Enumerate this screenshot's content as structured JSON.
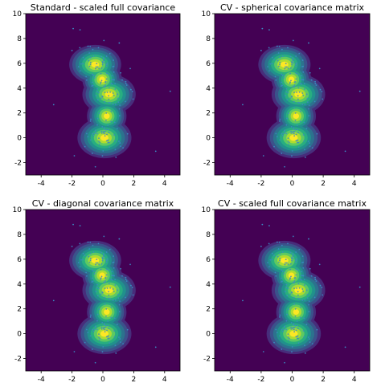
{
  "colors": {
    "background": "#440154",
    "levels": [
      "#472d7b",
      "#3b528b",
      "#2c728e",
      "#21918c",
      "#28ae80",
      "#5ec962",
      "#addc30",
      "#fde725"
    ],
    "points": "#3b8bc2"
  },
  "chart_data": [
    {
      "type": "heatmap",
      "title": "Standard - scaled full covariance",
      "xlabel": "",
      "ylabel": "",
      "xlim": [
        -5,
        5
      ],
      "ylim": [
        -3,
        10
      ],
      "xticks": [
        "-4",
        "-2",
        "0",
        "2",
        "4"
      ],
      "yticks": [
        "-2",
        "0",
        "2",
        "4",
        "6",
        "8",
        "10"
      ],
      "grid": false,
      "density_modes": [
        {
          "x": -0.5,
          "y": 5.9,
          "weight": 0.85
        },
        {
          "x": 0.4,
          "y": 3.5,
          "weight": 0.95
        },
        {
          "x": 0.1,
          "y": 0.0,
          "weight": 1.0
        }
      ]
    },
    {
      "type": "heatmap",
      "title": "CV - spherical covariance matrix",
      "xlabel": "",
      "ylabel": "",
      "xlim": [
        -5,
        5
      ],
      "ylim": [
        -3,
        10
      ],
      "xticks": [
        "-4",
        "-2",
        "0",
        "2",
        "4"
      ],
      "yticks": [
        "-2",
        "0",
        "2",
        "4",
        "6",
        "8",
        "10"
      ],
      "grid": false,
      "density_modes": [
        {
          "x": -0.5,
          "y": 5.9,
          "weight": 0.85
        },
        {
          "x": 0.4,
          "y": 3.5,
          "weight": 0.95
        },
        {
          "x": 0.1,
          "y": 0.0,
          "weight": 1.0
        }
      ]
    },
    {
      "type": "heatmap",
      "title": "CV - diagonal covariance matrix",
      "xlabel": "",
      "ylabel": "",
      "xlim": [
        -5,
        5
      ],
      "ylim": [
        -3,
        10
      ],
      "xticks": [
        "-4",
        "-2",
        "0",
        "2",
        "4"
      ],
      "yticks": [
        "-2",
        "0",
        "2",
        "4",
        "6",
        "8",
        "10"
      ],
      "grid": false,
      "density_modes": [
        {
          "x": -0.5,
          "y": 5.9,
          "weight": 0.85
        },
        {
          "x": 0.4,
          "y": 3.5,
          "weight": 0.95
        },
        {
          "x": 0.1,
          "y": 0.0,
          "weight": 1.0
        }
      ]
    },
    {
      "type": "heatmap",
      "title": "CV - scaled full covariance matrix",
      "xlabel": "",
      "ylabel": "",
      "xlim": [
        -5,
        5
      ],
      "ylim": [
        -3,
        10
      ],
      "xticks": [
        "-4",
        "-2",
        "0",
        "2",
        "4"
      ],
      "yticks": [
        "-2",
        "0",
        "2",
        "4",
        "6",
        "8",
        "10"
      ],
      "grid": false,
      "density_modes": [
        {
          "x": -0.5,
          "y": 5.9,
          "weight": 0.85
        },
        {
          "x": 0.4,
          "y": 3.5,
          "weight": 0.95
        },
        {
          "x": 0.1,
          "y": 0.0,
          "weight": 1.0
        }
      ]
    }
  ]
}
